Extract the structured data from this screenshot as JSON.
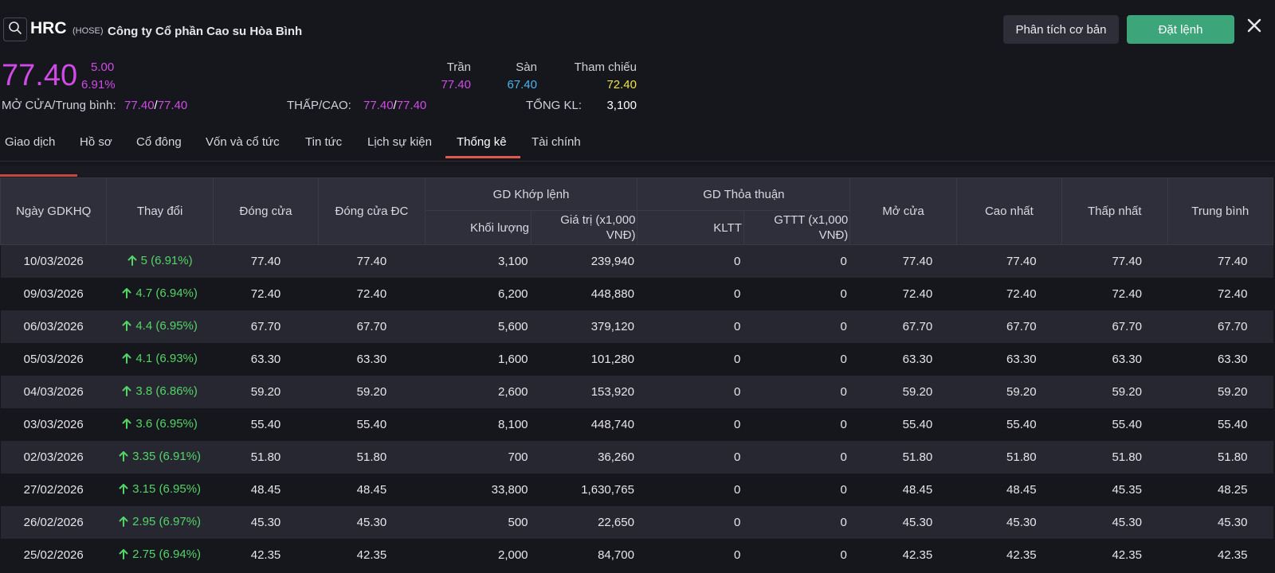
{
  "header": {
    "ticker": "HRC",
    "exchange": "(HOSE)",
    "company_name": "Công ty Cổ phần Cao su Hòa Bình",
    "search_icon": "search-icon",
    "analysis_button": "Phân tích cơ bản",
    "order_button": "Đặt lệnh",
    "close_icon": "close-icon"
  },
  "quote": {
    "price": "77.40",
    "change": "5.00",
    "change_pct": "6.91%",
    "ceiling_label": "Trần",
    "ceiling": "77.40",
    "floor_label": "Sàn",
    "floor": "67.40",
    "reference_label": "Tham chiếu",
    "reference": "72.40",
    "open_avg_label": "MỞ CỬA/Trung bình:",
    "open": "77.40",
    "avg": "77.40",
    "low_high_label": "THẤP/CAO:",
    "low": "77.40",
    "high": "77.40",
    "total_volume_label": "TỔNG KL:",
    "total_volume": "3,100",
    "slash": "/"
  },
  "colors": {
    "ceiling": "#d04be6",
    "floor": "#4bb4f0",
    "reference": "#f0e442",
    "up": "#54d466",
    "accent_button": "#3da57a",
    "active_tab_underline": "#e0584f"
  },
  "tabs": [
    {
      "label": "Giao dịch",
      "active": false
    },
    {
      "label": "Hồ sơ",
      "active": false
    },
    {
      "label": "Cổ đông",
      "active": false
    },
    {
      "label": "Vốn và cổ tức",
      "active": false
    },
    {
      "label": "Tin tức",
      "active": false
    },
    {
      "label": "Lịch sự kiện",
      "active": false
    },
    {
      "label": "Thống kê",
      "active": true
    },
    {
      "label": "Tài chính",
      "active": false
    }
  ],
  "table": {
    "headers": {
      "date": "Ngày GDKHQ",
      "change": "Thay đổi",
      "close": "Đóng cửa",
      "adj_close": "Đóng cửa ĐC",
      "matched_group": "GD Khớp lệnh",
      "matched_volume": "Khối lượng",
      "matched_value": "Giá trị (x1,000 VNĐ)",
      "negotiated_group": "GD Thỏa thuận",
      "negotiated_volume": "KLTT",
      "negotiated_value": "GTTT (x1,000 VNĐ)",
      "open": "Mở cửa",
      "high": "Cao nhất",
      "low": "Thấp nhất",
      "average": "Trung bình"
    },
    "rows": [
      {
        "date": "10/03/2026",
        "change": "5 (6.91%)",
        "close": "77.40",
        "adj_close": "77.40",
        "volume": "3,100",
        "value": "239,940",
        "kltt": "0",
        "gttt": "0",
        "open": "77.40",
        "high": "77.40",
        "low": "77.40",
        "avg": "77.40"
      },
      {
        "date": "09/03/2026",
        "change": "4.7 (6.94%)",
        "close": "72.40",
        "adj_close": "72.40",
        "volume": "6,200",
        "value": "448,880",
        "kltt": "0",
        "gttt": "0",
        "open": "72.40",
        "high": "72.40",
        "low": "72.40",
        "avg": "72.40"
      },
      {
        "date": "06/03/2026",
        "change": "4.4 (6.95%)",
        "close": "67.70",
        "adj_close": "67.70",
        "volume": "5,600",
        "value": "379,120",
        "kltt": "0",
        "gttt": "0",
        "open": "67.70",
        "high": "67.70",
        "low": "67.70",
        "avg": "67.70"
      },
      {
        "date": "05/03/2026",
        "change": "4.1 (6.93%)",
        "close": "63.30",
        "adj_close": "63.30",
        "volume": "1,600",
        "value": "101,280",
        "kltt": "0",
        "gttt": "0",
        "open": "63.30",
        "high": "63.30",
        "low": "63.30",
        "avg": "63.30"
      },
      {
        "date": "04/03/2026",
        "change": "3.8 (6.86%)",
        "close": "59.20",
        "adj_close": "59.20",
        "volume": "2,600",
        "value": "153,920",
        "kltt": "0",
        "gttt": "0",
        "open": "59.20",
        "high": "59.20",
        "low": "59.20",
        "avg": "59.20"
      },
      {
        "date": "03/03/2026",
        "change": "3.6 (6.95%)",
        "close": "55.40",
        "adj_close": "55.40",
        "volume": "8,100",
        "value": "448,740",
        "kltt": "0",
        "gttt": "0",
        "open": "55.40",
        "high": "55.40",
        "low": "55.40",
        "avg": "55.40"
      },
      {
        "date": "02/03/2026",
        "change": "3.35 (6.91%)",
        "close": "51.80",
        "adj_close": "51.80",
        "volume": "700",
        "value": "36,260",
        "kltt": "0",
        "gttt": "0",
        "open": "51.80",
        "high": "51.80",
        "low": "51.80",
        "avg": "51.80"
      },
      {
        "date": "27/02/2026",
        "change": "3.15 (6.95%)",
        "close": "48.45",
        "adj_close": "48.45",
        "volume": "33,800",
        "value": "1,630,765",
        "kltt": "0",
        "gttt": "0",
        "open": "48.45",
        "high": "48.45",
        "low": "45.35",
        "avg": "48.25"
      },
      {
        "date": "26/02/2026",
        "change": "2.95 (6.97%)",
        "close": "45.30",
        "adj_close": "45.30",
        "volume": "500",
        "value": "22,650",
        "kltt": "0",
        "gttt": "0",
        "open": "45.30",
        "high": "45.30",
        "low": "45.30",
        "avg": "45.30"
      },
      {
        "date": "25/02/2026",
        "change": "2.75 (6.94%)",
        "close": "42.35",
        "adj_close": "42.35",
        "volume": "2,000",
        "value": "84,700",
        "kltt": "0",
        "gttt": "0",
        "open": "42.35",
        "high": "42.35",
        "low": "42.35",
        "avg": "42.35"
      }
    ]
  }
}
